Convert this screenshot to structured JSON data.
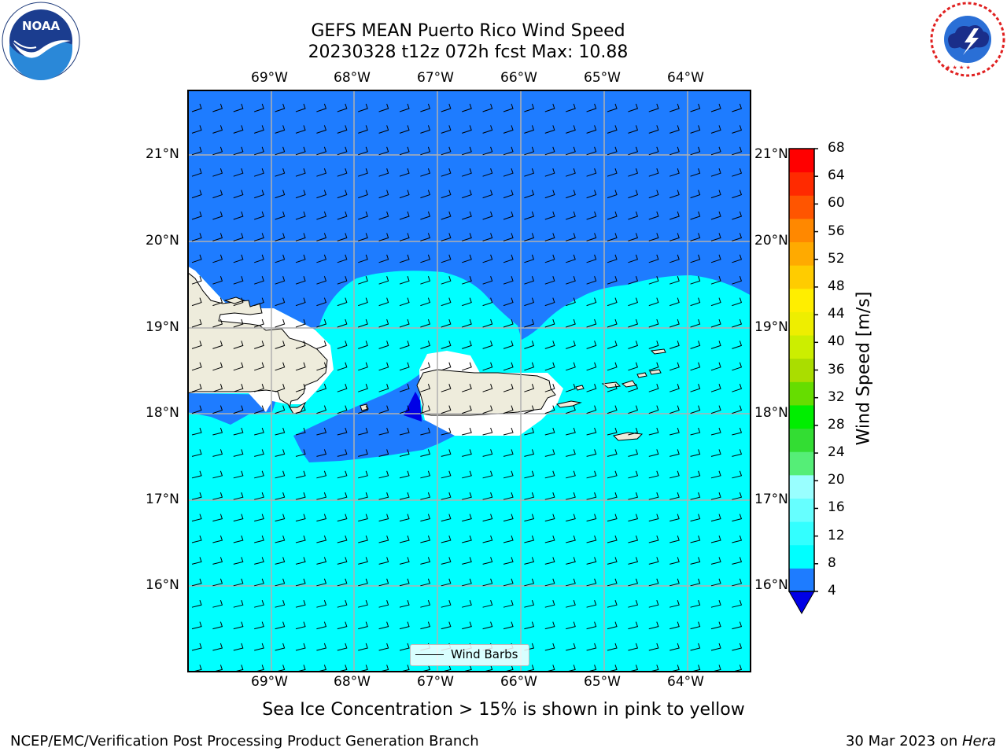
{
  "title": {
    "line1": "GEFS MEAN Puerto Rico Wind Speed",
    "line2": "20230328 t12z 072h fcst   Max: 10.88"
  },
  "logos": {
    "left": {
      "icon": "noaa-logo",
      "text": "NOAA",
      "ring_text": "NATIONAL OCEANIC AND ATMOSPHERIC ADMINISTRATION · U.S. DEPARTMENT OF COMMERCE"
    },
    "right": {
      "icon": "nws-logo",
      "ring_text": "NATIONAL WEATHER SERVICE"
    }
  },
  "map": {
    "lon_labels": [
      "69°W",
      "68°W",
      "67°W",
      "66°W",
      "65°W",
      "64°W"
    ],
    "lat_labels": [
      "21°N",
      "20°N",
      "19°N",
      "18°N",
      "17°N",
      "16°N"
    ],
    "legend_label": "Wind Barbs",
    "colors": {
      "land": "#eeecdc",
      "speed_4_8": "#1e7cff",
      "speed_8_12": "#00ffff",
      "below_4": "#0000e6",
      "grid": "#b0b0b0"
    }
  },
  "colorbar": {
    "label": "Wind Speed [m/s]",
    "ticks": [
      "68",
      "64",
      "60",
      "56",
      "52",
      "48",
      "44",
      "40",
      "36",
      "32",
      "28",
      "24",
      "20",
      "16",
      "12",
      "8",
      "4"
    ],
    "colors_bottom_to_top": [
      "#1e7cff",
      "#00ffff",
      "#33ffff",
      "#66ffff",
      "#99ffff",
      "#55ee77",
      "#33dd33",
      "#00ee00",
      "#66dd00",
      "#aadd00",
      "#ccee00",
      "#eeee00",
      "#ffee00",
      "#ffcc00",
      "#ffaa00",
      "#ff8800",
      "#ff5500",
      "#ff2a00",
      "#ff0000"
    ],
    "under_color": "#0000e6"
  },
  "caption": "Sea Ice Concentration > 15% is shown in pink to yellow",
  "footer": {
    "left": "NCEP/EMC/Verification Post Processing Product Generation Branch",
    "right_prefix": "30 Mar 2023 on ",
    "right_host": "Hera"
  }
}
